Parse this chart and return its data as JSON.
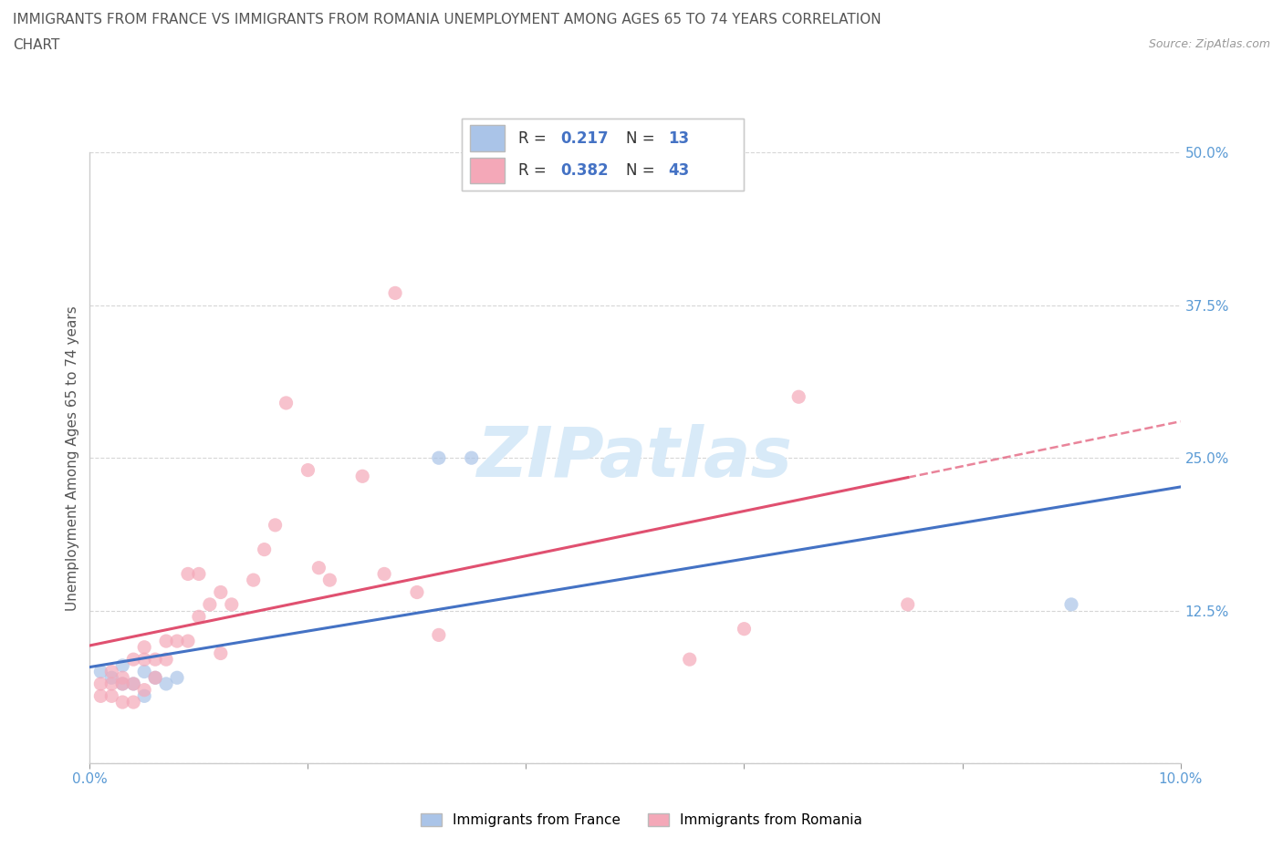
{
  "title_line1": "IMMIGRANTS FROM FRANCE VS IMMIGRANTS FROM ROMANIA UNEMPLOYMENT AMONG AGES 65 TO 74 YEARS CORRELATION",
  "title_line2": "CHART",
  "source": "Source: ZipAtlas.com",
  "ylabel": "Unemployment Among Ages 65 to 74 years",
  "xlim": [
    0.0,
    0.1
  ],
  "ylim": [
    0.0,
    0.5
  ],
  "xticks": [
    0.0,
    0.02,
    0.04,
    0.06,
    0.08,
    0.1
  ],
  "xtick_labels": [
    "0.0%",
    "",
    "",
    "",
    "",
    "10.0%"
  ],
  "yticks": [
    0.0,
    0.125,
    0.25,
    0.375,
    0.5
  ],
  "ytick_labels": [
    "",
    "12.5%",
    "25.0%",
    "37.5%",
    "50.0%"
  ],
  "france_R": 0.217,
  "france_N": 13,
  "romania_R": 0.382,
  "romania_N": 43,
  "france_color": "#aac4e8",
  "romania_color": "#f4a8b8",
  "france_line_color": "#4472c4",
  "romania_line_color": "#e05070",
  "watermark_color": "#d8eaf8",
  "france_scatter_x": [
    0.001,
    0.002,
    0.003,
    0.003,
    0.004,
    0.005,
    0.005,
    0.006,
    0.007,
    0.008,
    0.032,
    0.035,
    0.09
  ],
  "france_scatter_y": [
    0.075,
    0.07,
    0.065,
    0.08,
    0.065,
    0.055,
    0.075,
    0.07,
    0.065,
    0.07,
    0.25,
    0.25,
    0.13
  ],
  "romania_scatter_x": [
    0.001,
    0.001,
    0.002,
    0.002,
    0.002,
    0.003,
    0.003,
    0.003,
    0.004,
    0.004,
    0.004,
    0.005,
    0.005,
    0.005,
    0.006,
    0.006,
    0.007,
    0.007,
    0.008,
    0.009,
    0.009,
    0.01,
    0.01,
    0.011,
    0.012,
    0.012,
    0.013,
    0.015,
    0.016,
    0.017,
    0.018,
    0.02,
    0.021,
    0.022,
    0.025,
    0.027,
    0.028,
    0.03,
    0.032,
    0.055,
    0.06,
    0.065,
    0.075
  ],
  "romania_scatter_y": [
    0.055,
    0.065,
    0.055,
    0.065,
    0.075,
    0.05,
    0.065,
    0.07,
    0.05,
    0.065,
    0.085,
    0.06,
    0.085,
    0.095,
    0.07,
    0.085,
    0.085,
    0.1,
    0.1,
    0.1,
    0.155,
    0.12,
    0.155,
    0.13,
    0.09,
    0.14,
    0.13,
    0.15,
    0.175,
    0.195,
    0.295,
    0.24,
    0.16,
    0.15,
    0.235,
    0.155,
    0.385,
    0.14,
    0.105,
    0.085,
    0.11,
    0.3,
    0.13
  ]
}
